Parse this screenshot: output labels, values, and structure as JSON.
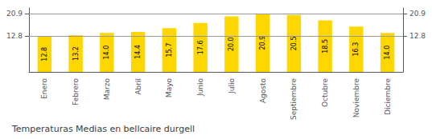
{
  "chart_data": {
    "type": "bar",
    "title": "Temperaturas Medias en bellcaire durgell",
    "categories": [
      "Enero",
      "Febrero",
      "Marzo",
      "Abril",
      "Mayo",
      "Junio",
      "Julio",
      "Agosto",
      "Septiembre",
      "Octubre",
      "Noviembre",
      "Diciembre"
    ],
    "values": [
      12.8,
      13.2,
      14.0,
      14.4,
      15.7,
      17.6,
      20.0,
      20.9,
      20.5,
      18.5,
      16.3,
      14.0
    ],
    "value_labels": [
      "12.8",
      "13.2",
      "14.0",
      "14.4",
      "15.7",
      "17.6",
      "20.0",
      "20.9",
      "20.5",
      "18.5",
      "16.3",
      "14.0"
    ],
    "color": "#FFD700",
    "data_labels": true,
    "ylim": [
      0,
      22.99
    ],
    "yticks": [
      12.8,
      20.9
    ],
    "y2lim": [
      0,
      22.99
    ],
    "y2ticks": [
      12.8,
      20.9
    ],
    "grid": true
  }
}
